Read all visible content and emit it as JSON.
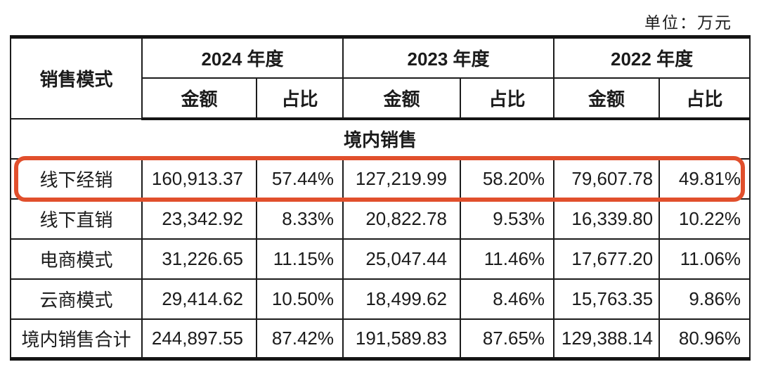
{
  "unit_label": "单位：万元",
  "highlight_color": "#e14f2c",
  "table": {
    "model_header": "销售模式",
    "years": [
      "2024 年度",
      "2023 年度",
      "2022 年度"
    ],
    "amount_label": "金额",
    "ratio_label": "占比",
    "section_label": "境内销售",
    "rows": [
      {
        "label": "线下经销",
        "highlighted": true,
        "v": [
          "160,913.37",
          "57.44%",
          "127,219.99",
          "58.20%",
          "79,607.78",
          "49.81%"
        ]
      },
      {
        "label": "线下直销",
        "highlighted": false,
        "v": [
          "23,342.92",
          "8.33%",
          "20,822.78",
          "9.53%",
          "16,339.80",
          "10.22%"
        ]
      },
      {
        "label": "电商模式",
        "highlighted": false,
        "v": [
          "31,226.65",
          "11.15%",
          "25,047.44",
          "11.46%",
          "17,677.20",
          "11.06%"
        ]
      },
      {
        "label": "云商模式",
        "highlighted": false,
        "v": [
          "29,414.62",
          "10.50%",
          "18,499.62",
          "8.46%",
          "15,763.35",
          "9.86%"
        ]
      },
      {
        "label": "境内销售合计",
        "highlighted": false,
        "v": [
          "244,897.55",
          "87.42%",
          "191,589.83",
          "87.65%",
          "129,388.14",
          "80.96%"
        ]
      }
    ]
  },
  "chart_data": {
    "type": "table",
    "title": "销售模式收入构成（单位：万元）",
    "section": "境内销售",
    "columns": [
      "销售模式",
      "2024 金额",
      "2024 占比",
      "2023 金额",
      "2023 占比",
      "2022 金额",
      "2022 占比"
    ],
    "rows": [
      [
        "线下经销",
        160913.37,
        "57.44%",
        127219.99,
        "58.20%",
        79607.78,
        "49.81%"
      ],
      [
        "线下直销",
        23342.92,
        "8.33%",
        20822.78,
        "9.53%",
        16339.8,
        "10.22%"
      ],
      [
        "电商模式",
        31226.65,
        "11.15%",
        25047.44,
        "11.46%",
        17677.2,
        "11.06%"
      ],
      [
        "云商模式",
        29414.62,
        "10.50%",
        18499.62,
        "8.46%",
        15763.35,
        "9.86%"
      ],
      [
        "境内销售合计",
        244897.55,
        "87.42%",
        191589.83,
        "87.65%",
        129388.14,
        "80.96%"
      ]
    ]
  }
}
